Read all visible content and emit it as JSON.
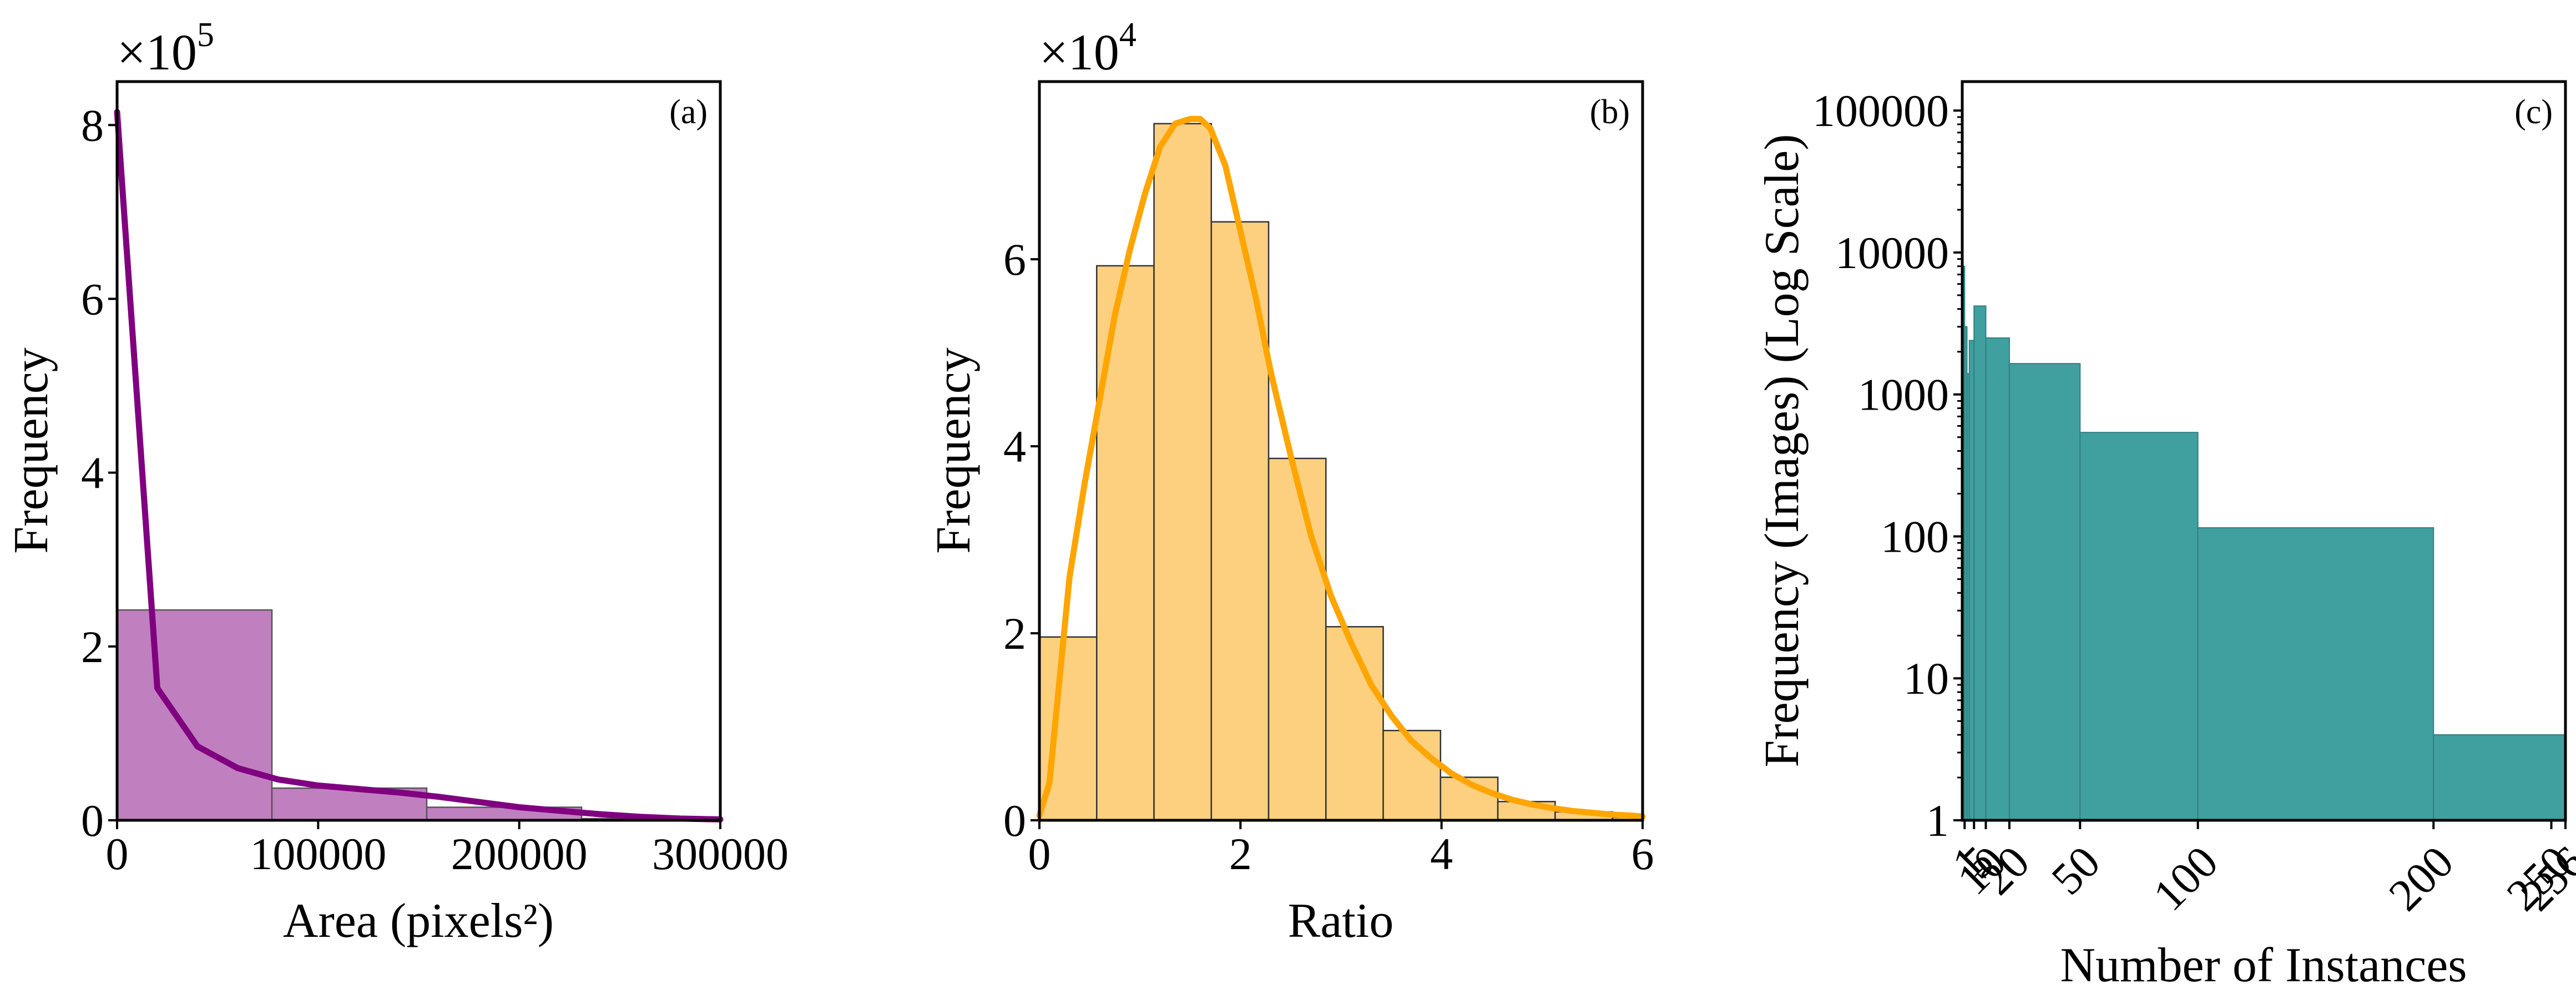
{
  "colors": {
    "area_bar": "#c080c0",
    "area_curve": "#800080",
    "ratio_bar": "#fdd07f",
    "ratio_curve": "#ffa500",
    "instance_bar": "#40a0a0",
    "instance_edge": "#2f8080"
  },
  "chart_data": [
    {
      "type": "bar",
      "panel_tag": "(a)",
      "xlabel": "Area (pixels²)",
      "ylabel": "Frequency",
      "offset_label": "×10",
      "offset_exponent": "5",
      "xlim": [
        0,
        300000
      ],
      "ylim": [
        0,
        8.5
      ],
      "y_scale_factor": 100000,
      "xticks": [
        0,
        100000,
        200000,
        300000
      ],
      "xtick_labels": [
        "0",
        "100000",
        "200000",
        "300000"
      ],
      "yticks": [
        0,
        2,
        4,
        6,
        8
      ],
      "ytick_labels": [
        "0",
        "2",
        "4",
        "6",
        "8"
      ],
      "bins": [
        {
          "x0": 0,
          "x1": 77000,
          "value": 2.42
        },
        {
          "x0": 77000,
          "x1": 154000,
          "value": 0.37
        },
        {
          "x0": 154000,
          "x1": 231000,
          "value": 0.15
        },
        {
          "x0": 231000,
          "x1": 308000,
          "value": 0.02
        }
      ],
      "curve": {
        "x": [
          0,
          20000,
          40000,
          60000,
          80000,
          100000,
          120000,
          140000,
          160000,
          180000,
          200000,
          220000,
          240000,
          260000,
          280000,
          300000
        ],
        "y": [
          8.15,
          1.52,
          0.85,
          0.6,
          0.47,
          0.4,
          0.36,
          0.32,
          0.27,
          0.21,
          0.15,
          0.11,
          0.07,
          0.04,
          0.02,
          0.01
        ]
      }
    },
    {
      "type": "bar",
      "panel_tag": "(b)",
      "xlabel": "Ratio",
      "ylabel": "Frequency",
      "offset_label": "×10",
      "offset_exponent": "4",
      "xlim": [
        0,
        6
      ],
      "ylim": [
        0,
        7.9
      ],
      "y_scale_factor": 10000,
      "xticks": [
        0,
        2,
        4,
        6
      ],
      "xtick_labels": [
        "0",
        "2",
        "4",
        "6"
      ],
      "yticks": [
        0,
        2,
        4,
        6
      ],
      "ytick_labels": [
        "0",
        "2",
        "4",
        "6"
      ],
      "bins": [
        {
          "x0": 0.0,
          "x1": 0.57,
          "value": 1.96
        },
        {
          "x0": 0.57,
          "x1": 1.14,
          "value": 5.93
        },
        {
          "x0": 1.14,
          "x1": 1.71,
          "value": 7.45
        },
        {
          "x0": 1.71,
          "x1": 2.28,
          "value": 6.4
        },
        {
          "x0": 2.28,
          "x1": 2.85,
          "value": 3.87
        },
        {
          "x0": 2.85,
          "x1": 3.42,
          "value": 2.07
        },
        {
          "x0": 3.42,
          "x1": 3.99,
          "value": 0.96
        },
        {
          "x0": 3.99,
          "x1": 4.56,
          "value": 0.46
        },
        {
          "x0": 4.56,
          "x1": 5.13,
          "value": 0.2
        },
        {
          "x0": 5.13,
          "x1": 5.7,
          "value": 0.09
        },
        {
          "x0": 5.7,
          "x1": 6.0,
          "value": 0.03
        }
      ],
      "curve": {
        "x": [
          0.0,
          0.1,
          0.2,
          0.3,
          0.45,
          0.6,
          0.75,
          0.9,
          1.05,
          1.2,
          1.35,
          1.5,
          1.6,
          1.7,
          1.85,
          2.0,
          2.15,
          2.3,
          2.5,
          2.7,
          2.9,
          3.1,
          3.3,
          3.5,
          3.7,
          3.9,
          4.1,
          4.3,
          4.5,
          4.7,
          4.9,
          5.1,
          5.3,
          5.5,
          5.7,
          5.9,
          6.0
        ],
        "y": [
          0.05,
          0.4,
          1.5,
          2.6,
          3.6,
          4.5,
          5.4,
          6.1,
          6.7,
          7.2,
          7.45,
          7.5,
          7.5,
          7.4,
          7.0,
          6.3,
          5.6,
          4.8,
          3.9,
          3.05,
          2.4,
          1.9,
          1.45,
          1.12,
          0.85,
          0.66,
          0.5,
          0.38,
          0.29,
          0.22,
          0.17,
          0.13,
          0.1,
          0.08,
          0.06,
          0.05,
          0.04
        ]
      }
    },
    {
      "type": "bar",
      "panel_tag": "(c)",
      "xlabel": "Number of Instances",
      "ylabel": "Frequency (Images) (Log Scale)",
      "y_scale": "log",
      "xlim": [
        0,
        256
      ],
      "ylim": [
        1,
        160000
      ],
      "xticks": [
        1,
        5,
        10,
        20,
        50,
        100,
        200,
        250,
        256
      ],
      "xtick_labels": [
        "1",
        "5",
        "10",
        "20",
        "50",
        "100",
        "200",
        "250",
        "256"
      ],
      "yticks": [
        1,
        10,
        100,
        1000,
        10000,
        100000
      ],
      "ytick_labels": [
        "1",
        "10",
        "100",
        "1000",
        "10000",
        "100000"
      ],
      "bins": [
        {
          "x0": 0,
          "x1": 1,
          "value": 8000
        },
        {
          "x0": 1,
          "x1": 2,
          "value": 3000
        },
        {
          "x0": 2,
          "x1": 3,
          "value": 1400
        },
        {
          "x0": 3,
          "x1": 5,
          "value": 2400
        },
        {
          "x0": 5,
          "x1": 10,
          "value": 4200
        },
        {
          "x0": 10,
          "x1": 20,
          "value": 2500
        },
        {
          "x0": 20,
          "x1": 50,
          "value": 1650
        },
        {
          "x0": 50,
          "x1": 100,
          "value": 540
        },
        {
          "x0": 100,
          "x1": 200,
          "value": 115
        },
        {
          "x0": 200,
          "x1": 256,
          "value": 4
        }
      ]
    }
  ]
}
